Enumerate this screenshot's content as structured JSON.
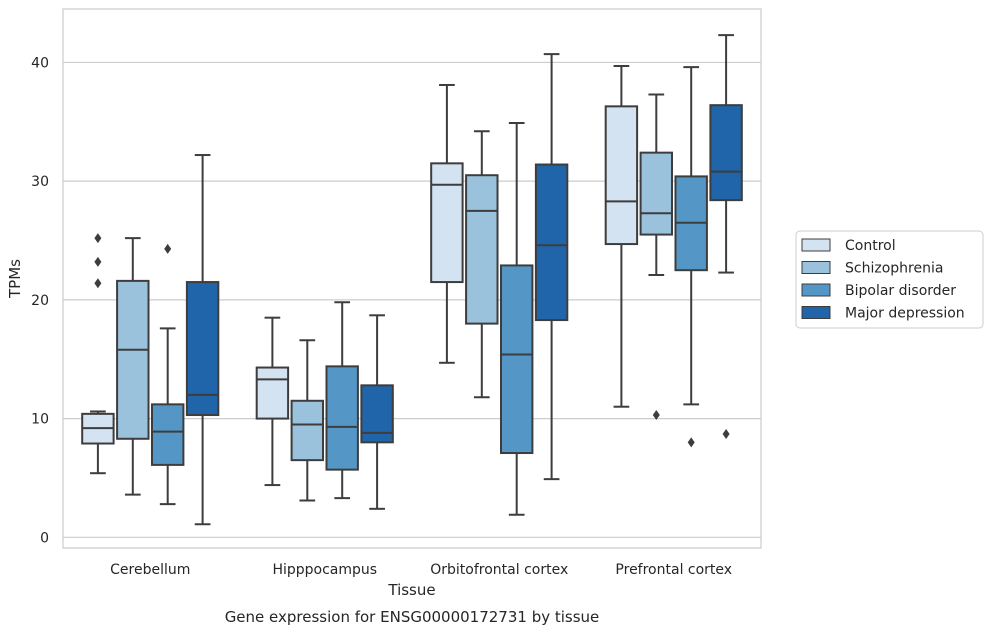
{
  "chart_data": {
    "type": "box",
    "caption": "Gene expression for ENSG00000172731 by tissue",
    "xlabel": "Tissue",
    "ylabel": "TPMs",
    "ylim": [
      -0.9,
      44.5
    ],
    "yticks": [
      0,
      10,
      20,
      30,
      40
    ],
    "grid": "horizontal",
    "legend_position": "right",
    "categories": [
      "Cerebellum",
      "Hipppocampus",
      "Orbitofrontal cortex",
      "Prefrontal cortex"
    ],
    "series": [
      {
        "name": "Control",
        "color": "#d4e3f2",
        "boxes": [
          {
            "whisker_low": 5.4,
            "q1": 7.9,
            "median": 9.2,
            "q3": 10.4,
            "whisker_high": 10.6,
            "outliers": [
              21.4,
              23.2,
              25.2
            ]
          },
          {
            "whisker_low": 4.4,
            "q1": 10.0,
            "median": 13.3,
            "q3": 14.3,
            "whisker_high": 18.5,
            "outliers": []
          },
          {
            "whisker_low": 14.7,
            "q1": 21.5,
            "median": 29.7,
            "q3": 31.5,
            "whisker_high": 38.1,
            "outliers": []
          },
          {
            "whisker_low": 11.0,
            "q1": 24.7,
            "median": 28.3,
            "q3": 36.3,
            "whisker_high": 39.7,
            "outliers": []
          }
        ]
      },
      {
        "name": "Schizophrenia",
        "color": "#9ac2dc",
        "boxes": [
          {
            "whisker_low": 3.6,
            "q1": 8.3,
            "median": 15.8,
            "q3": 21.6,
            "whisker_high": 25.2,
            "outliers": []
          },
          {
            "whisker_low": 3.1,
            "q1": 6.5,
            "median": 9.5,
            "q3": 11.5,
            "whisker_high": 16.6,
            "outliers": []
          },
          {
            "whisker_low": 11.8,
            "q1": 18.0,
            "median": 27.5,
            "q3": 30.5,
            "whisker_high": 34.2,
            "outliers": []
          },
          {
            "whisker_low": 22.1,
            "q1": 25.5,
            "median": 27.3,
            "q3": 32.4,
            "whisker_high": 37.3,
            "outliers": [
              10.3
            ]
          }
        ]
      },
      {
        "name": "Bipolar disorder",
        "color": "#5497c6",
        "boxes": [
          {
            "whisker_low": 2.8,
            "q1": 6.1,
            "median": 8.9,
            "q3": 11.2,
            "whisker_high": 17.6,
            "outliers": [
              24.3
            ]
          },
          {
            "whisker_low": 3.3,
            "q1": 5.7,
            "median": 9.3,
            "q3": 14.4,
            "whisker_high": 19.8,
            "outliers": []
          },
          {
            "whisker_low": 1.9,
            "q1": 7.1,
            "median": 15.4,
            "q3": 22.9,
            "whisker_high": 34.9,
            "outliers": []
          },
          {
            "whisker_low": 11.2,
            "q1": 22.5,
            "median": 26.5,
            "q3": 30.4,
            "whisker_high": 39.6,
            "outliers": [
              8.0
            ]
          }
        ]
      },
      {
        "name": "Major depression",
        "color": "#2064a9",
        "boxes": [
          {
            "whisker_low": 1.1,
            "q1": 10.3,
            "median": 12.0,
            "q3": 21.5,
            "whisker_high": 32.2,
            "outliers": []
          },
          {
            "whisker_low": 2.4,
            "q1": 8.0,
            "median": 8.8,
            "q3": 12.8,
            "whisker_high": 18.7,
            "outliers": []
          },
          {
            "whisker_low": 4.9,
            "q1": 18.3,
            "median": 24.6,
            "q3": 31.4,
            "whisker_high": 40.7,
            "outliers": []
          },
          {
            "whisker_low": 22.3,
            "q1": 28.4,
            "median": 30.8,
            "q3": 36.4,
            "whisker_high": 42.3,
            "outliers": [
              8.7
            ]
          }
        ]
      }
    ]
  }
}
